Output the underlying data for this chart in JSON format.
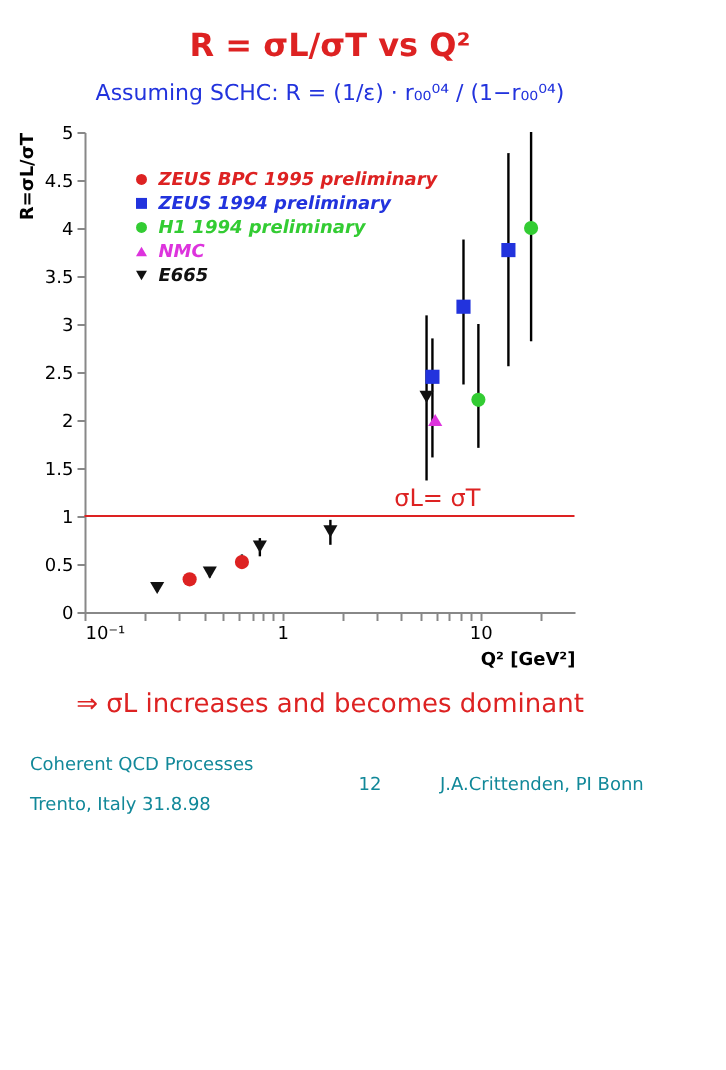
{
  "chart_data": {
    "type": "scatter",
    "title": "R = σL/σT vs Q²",
    "subtitle": "Assuming SCHC: R = (1/ε) · r₀₀⁰⁴ / (1−r₀₀⁰⁴)",
    "xlabel": "Q² [GeV²]",
    "ylabel": "R=σL/σT",
    "log": "x",
    "xlim": [
      0.1,
      30
    ],
    "ylim": [
      0,
      5
    ],
    "xticks": [
      {
        "value": 0.1,
        "label": "10⁻¹"
      },
      1,
      10,
      {
        "value": 0.2,
        "label": null
      },
      {
        "value": 0.3,
        "label": null
      },
      {
        "value": 0.4,
        "label": null
      },
      {
        "value": 0.5,
        "label": null
      },
      {
        "value": 0.6,
        "label": null
      },
      {
        "value": 0.7,
        "label": null
      },
      {
        "value": 0.8,
        "label": null
      },
      {
        "value": 0.9,
        "label": null
      },
      {
        "value": 2,
        "label": null
      },
      {
        "value": 3,
        "label": null
      },
      {
        "value": 4,
        "label": null
      },
      {
        "value": 5,
        "label": null
      },
      {
        "value": 6,
        "label": null
      },
      {
        "value": 7,
        "label": null
      },
      {
        "value": 8,
        "label": null
      },
      {
        "value": 9,
        "label": null
      },
      {
        "value": 20,
        "label": null
      }
    ],
    "yticks": [
      0,
      0.5,
      1,
      1.5,
      2,
      2.5,
      3,
      3.5,
      4,
      4.5,
      5
    ],
    "grid": false,
    "legend": "top left",
    "series": [
      {
        "name": "ZEUS BPC 1995 preliminary",
        "color": "#dd2222",
        "marker": "circle",
        "x": [
          0.34,
          0.625
        ],
        "values": [
          0.34,
          0.52
        ],
        "errors": [
          null,
          [
            0.45,
            0.6
          ]
        ]
      },
      {
        "name": "ZEUS 1994 preliminary",
        "color": "#2233dd",
        "marker": "square",
        "x": [
          5.74,
          8.24,
          13.9
        ],
        "values": [
          2.45,
          3.18,
          3.77
        ],
        "errors": [
          [
            1.61,
            2.85
          ],
          [
            2.37,
            3.88
          ],
          [
            2.56,
            4.78
          ]
        ]
      },
      {
        "name": "H1 1994 preliminary",
        "color": "#33cc33",
        "marker": "circle",
        "x": [
          9.8,
          18.1
        ],
        "values": [
          2.21,
          4.0
        ],
        "errors": [
          [
            1.71,
            3.0
          ],
          [
            2.82,
            5.0
          ]
        ]
      },
      {
        "name": "NMC",
        "color": "#dd33dd",
        "marker": "triangle",
        "x": [
          5.93
        ],
        "values": [
          2.0
        ],
        "errors": [
          null
        ]
      },
      {
        "name": "E665",
        "color": "#111111",
        "marker": "triangle-down",
        "x": [
          0.233,
          0.43,
          0.77,
          1.75,
          5.36
        ],
        "values": [
          0.25,
          0.41,
          0.68,
          0.84,
          2.24
        ],
        "errors": [
          [
            0.21,
            0.29
          ],
          [
            0.36,
            0.46
          ],
          [
            0.58,
            0.77
          ],
          [
            0.7,
            0.96
          ],
          [
            1.37,
            3.09
          ]
        ]
      }
    ],
    "ref_lines": [
      {
        "axis": "y",
        "value": 1,
        "label": "σL= σT",
        "color": "#dd2222"
      }
    ],
    "annotations": [
      "⇒ σL increases and becomes dominant",
      "Coherent QCD Processes",
      "Trento, Italy   31.8.98",
      "12",
      "J.A.Crittenden, PI Bonn"
    ]
  }
}
